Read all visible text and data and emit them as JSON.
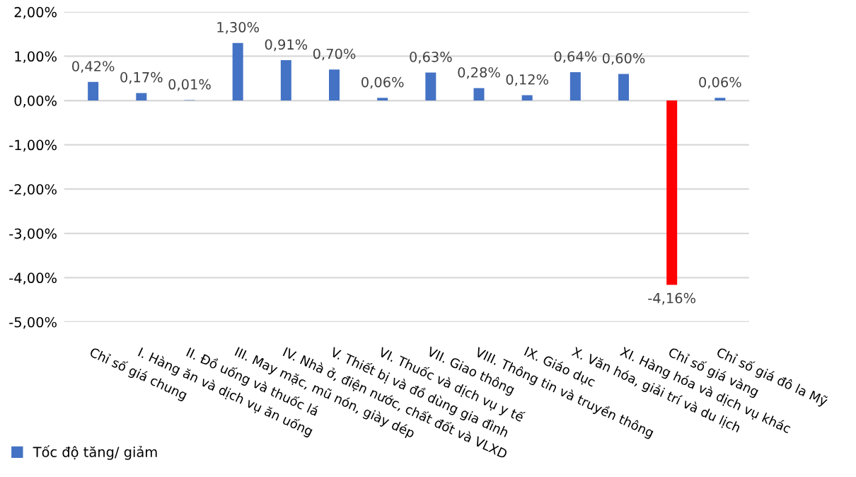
{
  "chart_data": {
    "type": "bar",
    "categories": [
      "Chỉ số giá chung",
      "I. Hàng ăn và dịch vụ ăn uống",
      "II. Đồ uống và thuốc lá",
      "III. May mặc, mũ nón, giày dép",
      "IV. Nhà ở, điện nước, chất đốt và VLXD",
      "V. Thiết bị và đồ dùng gia đình",
      "VI. Thuốc và dịch vụ y tế",
      "VII. Giao thông",
      "VIII. Thông tin và truyền thông",
      "IX. Giáo dục",
      "X. Văn hóa, giải trí và du lịch",
      "XI. Hàng hóa và dịch vụ khác",
      "Chỉ số giá vàng",
      "Chỉ số giá đô la Mỹ"
    ],
    "series": [
      {
        "name": "Tốc độ tăng/ giảm",
        "color": "#4472c4",
        "colors": [
          "#4472c4",
          "#4472c4",
          "#4472c4",
          "#4472c4",
          "#4472c4",
          "#4472c4",
          "#4472c4",
          "#4472c4",
          "#4472c4",
          "#4472c4",
          "#4472c4",
          "#4472c4",
          "#ff0000",
          "#4472c4"
        ],
        "values": [
          0.42,
          0.17,
          0.01,
          1.3,
          0.91,
          0.7,
          0.06,
          0.63,
          0.28,
          0.12,
          0.64,
          0.6,
          -4.16,
          0.06
        ],
        "value_labels": [
          "0,42%",
          "0,17%",
          "0,01%",
          "1,30%",
          "0,91%",
          "0,70%",
          "0,06%",
          "0,63%",
          "0,28%",
          "0,12%",
          "0,64%",
          "0,60%",
          "-4,16%",
          "0,06%"
        ]
      }
    ],
    "ylim": [
      -5,
      2
    ],
    "yticks": [
      {
        "value": 2,
        "label": "2,00%"
      },
      {
        "value": 1,
        "label": "1,00%"
      },
      {
        "value": 0,
        "label": "0,00%"
      },
      {
        "value": -1,
        "label": "-1,00%"
      },
      {
        "value": -2,
        "label": "-2,00%"
      },
      {
        "value": -3,
        "label": "-3,00%"
      },
      {
        "value": -4,
        "label": "-4,00%"
      },
      {
        "value": -5,
        "label": "-5,00%"
      }
    ],
    "grid": "y",
    "legend": "bottom left"
  }
}
